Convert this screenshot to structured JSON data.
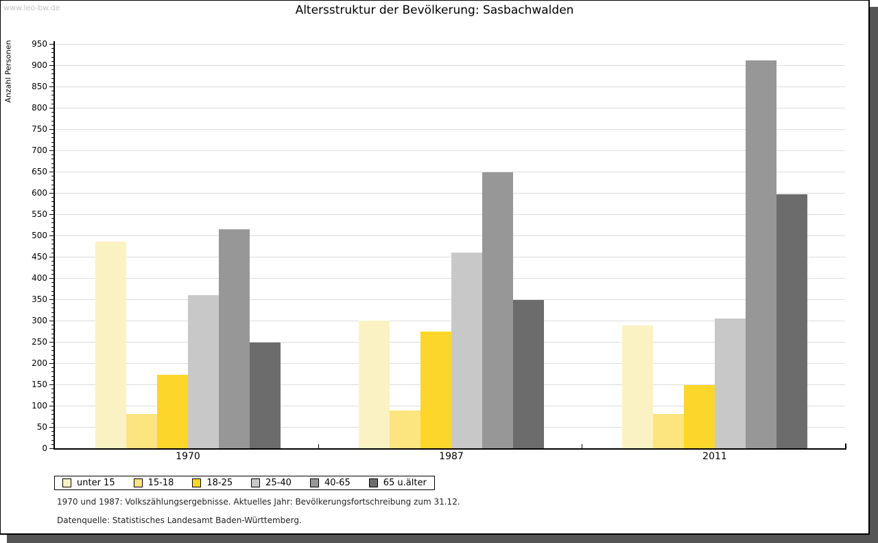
{
  "watermark": "www.leo-bw.de",
  "title": "Altersstruktur der Bevölkerung: Sasbachwalden",
  "chart_data": {
    "type": "bar",
    "title": "Altersstruktur der Bevölkerung: Sasbachwalden",
    "xlabel": "",
    "ylabel": "Anzahl Personen",
    "ylim": [
      0,
      950
    ],
    "ytick_step": 50,
    "ytick_minor_step": 10,
    "grid": "horizontal",
    "legend_position": "bottom-left",
    "categories": [
      "1970",
      "1987",
      "2011"
    ],
    "series": [
      {
        "name": "unter 15",
        "color": "#FBF2C3",
        "values": [
          485,
          300,
          288
        ]
      },
      {
        "name": "15-18",
        "color": "#FCE47F",
        "values": [
          80,
          88,
          80
        ]
      },
      {
        "name": "18-25",
        "color": "#FCD62B",
        "values": [
          172,
          275,
          148
        ]
      },
      {
        "name": "25-40",
        "color": "#C8C8C8",
        "values": [
          360,
          460,
          305
        ]
      },
      {
        "name": "40-65",
        "color": "#979797",
        "values": [
          515,
          648,
          911
        ]
      },
      {
        "name": "65 u.älter",
        "color": "#6C6C6C",
        "values": [
          248,
          348,
          597
        ]
      }
    ]
  },
  "footnotes": [
    "1970 und 1987: Volkszählungsergebnisse. Aktuelles Jahr: Bevölkerungsfortschreibung zum 31.12.",
    "Datenquelle: Statistisches Landesamt Baden-Württemberg."
  ]
}
